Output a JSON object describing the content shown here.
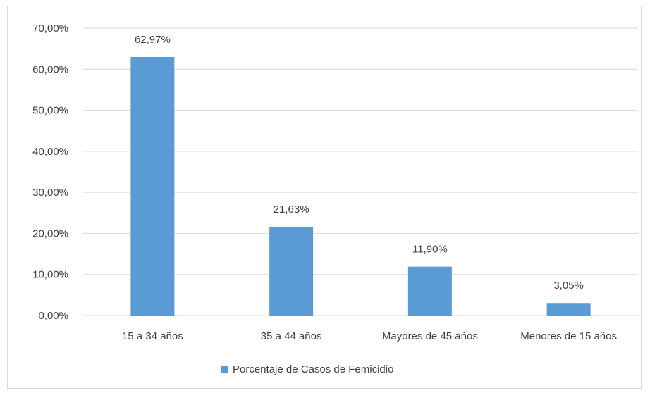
{
  "chart_data": {
    "type": "bar",
    "title": "",
    "xlabel": "",
    "ylabel": "",
    "categories": [
      "15 a 34 años",
      "35 a 44 años",
      "Mayores de 45 años",
      "Menores de 15 años"
    ],
    "series": [
      {
        "name": "Porcentaje de Casos de Femicidio",
        "values": [
          62.97,
          21.63,
          11.9,
          3.05
        ],
        "data_labels": [
          "62,97%",
          "21,63%",
          "11,90%",
          "3,05%"
        ],
        "color": "#5b9bd5"
      }
    ],
    "ylim": [
      0,
      70
    ],
    "yticks": [
      0,
      10,
      20,
      30,
      40,
      50,
      60,
      70
    ],
    "ytick_labels": [
      "0,00%",
      "10,00%",
      "20,00%",
      "30,00%",
      "40,00%",
      "50,00%",
      "60,00%",
      "70,00%"
    ],
    "grid": true,
    "legend": "bottom"
  },
  "colors": {
    "gridline": "#d9d9d9",
    "text": "#404040",
    "bar": "#5b9bd5"
  }
}
